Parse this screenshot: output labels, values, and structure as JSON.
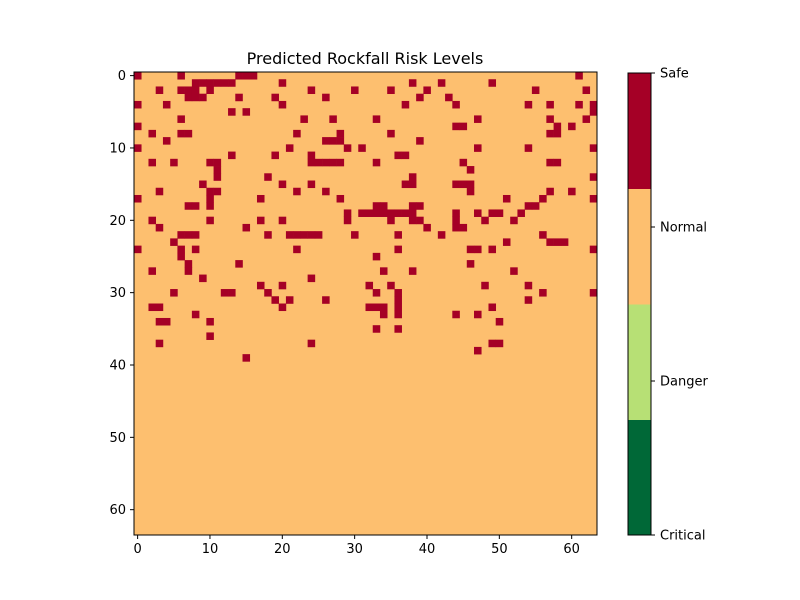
{
  "chart_data": {
    "type": "heatmap",
    "title": "Predicted Rockfall Risk Levels",
    "xlabel": "",
    "ylabel": "",
    "rows": 64,
    "cols": 64,
    "x_ticks": [
      "0",
      "10",
      "20",
      "30",
      "40",
      "50",
      "60"
    ],
    "y_ticks": [
      "0",
      "10",
      "20",
      "30",
      "40",
      "50",
      "60"
    ],
    "grid": false,
    "colorbar": {
      "placement": "right",
      "labels_bottom_to_top": [
        "Critical",
        "Danger",
        "Normal",
        "Safe"
      ],
      "colors_bottom_to_top": [
        "#006837",
        "#b7e075",
        "#fdbf6f",
        "#a50026"
      ]
    },
    "values_legend": {
      "normal": "Normal",
      "safe": "Safe"
    },
    "cell_grid": [
      "SNNNNNSNNNNNNNSSSNNNNNNNNNNNNNNNNNNNNNNNNNNNNNNNNNNNNNNNNNNNNSNN",
      "NNNNNNNNSSSSSSNNNNNNSNNNNNNNNNNNNNNNNNSNNNSNNNNNNSNNNNNNNNNNNNNN",
      "NNNSNNSSSNSNNNNNNNNNNNNNSNNNNNSNNNNSNNNNSNNNNNNNNNNNNNNSNNNNNNSN",
      "NNNNNNNSSSNNNNSNNNNSNNNNNNSNNNNNNNNNNNNSNNNSNNNNNNNNNNNNNNNNNNNN",
      "SNNNSNNNNNNNNNNNNNNNSNNNNNNNNNNNNNNNNSNNNNNNSNNNNNNNNNSNNSNNNSNS",
      "NNNNNNNNNNNNNSNSNNNNNNNNNNNNNNNNNNNNNNNNNNNNNNNNNNNNNNNNNNNNNNNS",
      "NNNNNNSNNNNNNNNNNNNNNNNSNNNSNNNNNSNNNNNNNNNNNNNSNNNNNNNNNSNNNNSN",
      "SNNNNNNNNNNNNNNNNNNNNNNNNNNNNNNNNNNNNNNNNNNNSSNNNNNNNNNNNNSNSNNN",
      "NNSNNNSSNNNNNNNNNNNNNNSNNNNNSNNNNNNSNNNNNNNNNNNNNNNNNNNNNSSNNNNN",
      "NNNNSNNNNNNNNNNNNNNNNNNNNNSSSNNNNNNNNNNSNNNNNNNNNNNNNNNNNNNNNNNN",
      "SNNNNNNNNNNNNNNNNNNNNSNNNNNNNSNSNNNNNNNNNNNNNNNSNNNNNNSNNNNNNNNS",
      "NNNNNNNNNNNNNSNNNNNSNNNNSNNNNNNNNNNNSSNNNNNNNNNNNNNNNNNNNNNNNNNN",
      "NNSNNSNNNNSSNNNNNNNNNNNNSSSSSNNNNSNNNNNNNNNNNSNNNNNNNNNNNSSNNNNN",
      "NNNNNNNNNNNSNNNNNNNNNNNNNNNNNNNNNNNNNNNNNNNNNNSNNNNNNNNNNNNNNNNN",
      "NNNNNNNNNNNSNNNNNNSNNNNNNNNNNNNNNNNNNNSNNNNNNNNNNNNNNNNNNNNNNNNS",
      "NNNNNNNNNSNNNNNNNNNNSNNNSNNNNNNNNNNNNSSNNNNNSSSNNNNNNNNNNNNNNNNN",
      "NNNSNNNNNNSSNNNNNNNNNNSNNNSNNNNNNNNNNNNNNNNNNNSNNNNNNNNNNSNNSNNN",
      "SNNNNNNNNNSNNNNNNSNNNNNNNNNNSNNNNNNNNNNNNNNNNNNNNNNSNNNNSNNNNNNS",
      "NNNNNNNSSNSNNNNNNNNNNNNNNNNNNNNNNSSNNNSSNNNNNNNNNNNNNNSSNNNNNNNN",
      "NNNNNNNNNNNNNNNNNNNNNNNNNNNNNSNSSSSSSSSNNNNNSNNSNSSNNSNNNNNNNNNN",
      "NNSNNNNNNNSNNNNNNSNNSNNNNNNNNSNNNNNSNNSSNNNNSNNNSNNNSNNNNNNNNNNN",
      "NNNSNNNNNNNNNNNSNNNNNNNNNNNNNNNNNNNNNNNNSNNNSSNNNNNNNNNNNNNNNNNN",
      "NNNNNNSSSNNNNNNNNNSNNSSSSSNNNNSNNNNNSNNNNNSNNNNNNNNNNNNNSNNNNNNN",
      "NNNNNSNNNNNNNNNNNNNNNNNNNNNNNNNNNNNNNNNNNNNNNNNNNNNSNNNNNSSSNNNN",
      "SNNNNNSNSNNNNNNNNNNNNNSNNNNNNNNNNNNNSNNNNNNNNNSSNSNNNNNNNNNNNNNS",
      "NNNNNNSNNNNNNNNNNNNNNNNNNNNNNNNNNSNNNNNNNNNNNNNNNNNNNNNNNNNNNNNN",
      "NNNNNNNSNNNNNNSNNNNNNNNNNNNNNNNNNNNNNNNNNNNNNNSNNNNNNNNNNNNNNNNN",
      "NNSNNNNSNNNNNNNNNNNNNNNNNNNNNNNNNNSNNNSNNNNNNNNNNNNNSNNNNNNNNNNN",
      "NNNNNNNNNSNNNNNNNNNNNNNNSNNNNNNNNNNNNNNNNNNNNNNNNNNNNNNNNNNNNNNN",
      "NNNNNNNNNNNNNNNNNSNNSNNNNNNNNNNNSNNSNNNNNNNNNNNNSNNNNNSNNNNNNNNN",
      "NNNNNSNNNNNNSSNNNNSNNNNNNNNNNNNNNSNNSNNNNNNNNNNNNNNNNNNNSNNNNNNS",
      "NNNNNNNNNNNNNNNNNNNSNSNNNNSNNNNNNNNNSNNNNNNNNNNNNNNNNNSNNNNNNNNN",
      "NNSSNNNNNNNNNNNNNNNNSNNNNNNNNNNNSSSNSNNNNNNNNNNNNSNNNNNNNNNNNNNN",
      "NNNNNNNNSNNNNNNNNNNNNNNNNNNNNNNNNNSNSNNNNNNNSNNSNNNNNNNNNNNNNNNN",
      "NNNSSNNNNNSNNNNNNNNNNNNNNNNNNNNNNNNNNNNNNNNNNNNNNNSNNNNNNNNNNNNN",
      "NNNNNNNNNNNNNNNNNNNNNNNNNNNNNNNNNSNNSNNNNNNNNNNNNNNNNNNNNNNNNNNN",
      "NNNNNNNNNNSNNNNNNNNNNNNNNNNNNNNNNNNNNNNNNNNNNNNNNNNNNNNNNNNNNNNN",
      "NNNSNNNNNNNNNNNNNNNNNNNNSNNNNNNNNNNNNNNNNNNNNNNNNSSNNNNNNNNNNNNN",
      "NNNNNNNNNNNNNNNNNNNNNNNNNNNNNNNNNNNNNNNNNNNNNNNSNNNNNNNNNNNNNNNN",
      "NNNNNNNNNNNNNNNSNNNNNNNNNNNNNNNNNNNNNNNNNNNNNNNNNNNNNNNNNNNNNNNN",
      "NNNNNNNNNNNNNNNNNNNNNNNNNNNNNNNNNNNNNNNNNNNNNNNNNNNNNNNNNNNNNNNN",
      "NNNNNNNNNNNNNNNNNNNNNNNNNNNNNNNNNNNNNNNNNNNNNNNNNNNNNNNNNNNNNNNN",
      "NNNNNNNNNNNNNNNNNNNNNNNNNNNNNNNNNNNNNNNNNNNNNNNNNNNNNNNNNNNNNNNN",
      "NNNNNNNNNNNNNNNNNNNNNNNNNNNNNNNNNNNNNNNNNNNNNNNNNNNNNNNNNNNNNNNN",
      "NNNNNNNNNNNNNNNNNNNNNNNNNNNNNNNNNNNNNNNNNNNNNNNNNNNNNNNNNNNNNNNN",
      "NNNNNNNNNNNNNNNNNNNNNNNNNNNNNNNNNNNNNNNNNNNNNNNNNNNNNNNNNNNNNNNN",
      "NNNNNNNNNNNNNNNNNNNNNNNNNNNNNNNNNNNNNNNNNNNNNNNNNNNNNNNNNNNNNNNN",
      "NNNNNNNNNNNNNNNNNNNNNNNNNNNNNNNNNNNNNNNNNNNNNNNNNNNNNNNNNNNNNNNN",
      "NNNNNNNNNNNNNNNNNNNNNNNNNNNNNNNNNNNNNNNNNNNNNNNNNNNNNNNNNNNNNNNN",
      "NNNNNNNNNNNNNNNNNNNNNNNNNNNNNNNNNNNNNNNNNNNNNNNNNNNNNNNNNNNNNNNN",
      "NNNNNNNNNNNNNNNNNNNNNNNNNNNNNNNNNNNNNNNNNNNNNNNNNNNNNNNNNNNNNNNN",
      "NNNNNNNNNNNNNNNNNNNNNNNNNNNNNNNNNNNNNNNNNNNNNNNNNNNNNNNNNNNNNNNN",
      "NNNNNNNNNNNNNNNNNNNNNNNNNNNNNNNNNNNNNNNNNNNNNNNNNNNNNNNNNNNNNNNN",
      "NNNNNNNNNNNNNNNNNNNNNNNNNNNNNNNNNNNNNNNNNNNNNNNNNNNNNNNNNNNNNNNN",
      "NNNNNNNNNNNNNNNNNNNNNNNNNNNNNNNNNNNNNNNNNNNNNNNNNNNNNNNNNNNNNNNN",
      "NNNNNNNNNNNNNNNNNNNNNNNNNNNNNNNNNNNNNNNNNNNNNNNNNNNNNNNNNNNNNNNN",
      "NNNNNNNNNNNNNNNNNNNNNNNNNNNNNNNNNNNNNNNNNNNNNNNNNNNNNNNNNNNNNNNN",
      "NNNNNNNNNNNNNNNNNNNNNNNNNNNNNNNNNNNNNNNNNNNNNNNNNNNNNNNNNNNNNNNN",
      "NNNNNNNNNNNNNNNNNNNNNNNNNNNNNNNNNNNNNNNNNNNNNNNNNNNNNNNNNNNNNNNN",
      "NNNNNNNNNNNNNNNNNNNNNNNNNNNNNNNNNNNNNNNNNNNNNNNNNNNNNNNNNNNNNNNN",
      "NNNNNNNNNNNNNNNNNNNNNNNNNNNNNNNNNNNNNNNNNNNNNNNNNNNNNNNNNNNNNNNN",
      "NNNNNNNNNNNNNNNNNNNNNNNNNNNNNNNNNNNNNNNNNNNNNNNNNNNNNNNNNNNNNNNN",
      "NNNNNNNNNNNNNNNNNNNNNNNNNNNNNNNNNNNNNNNNNNNNNNNNNNNNNNNNNNNNNNNN",
      "NNNNNNNNNNNNNNNNNNNNNNNNNNNNNNNNNNNNNNNNNNNNNNNNNNNNNNNNNNNNNNNN"
    ]
  }
}
